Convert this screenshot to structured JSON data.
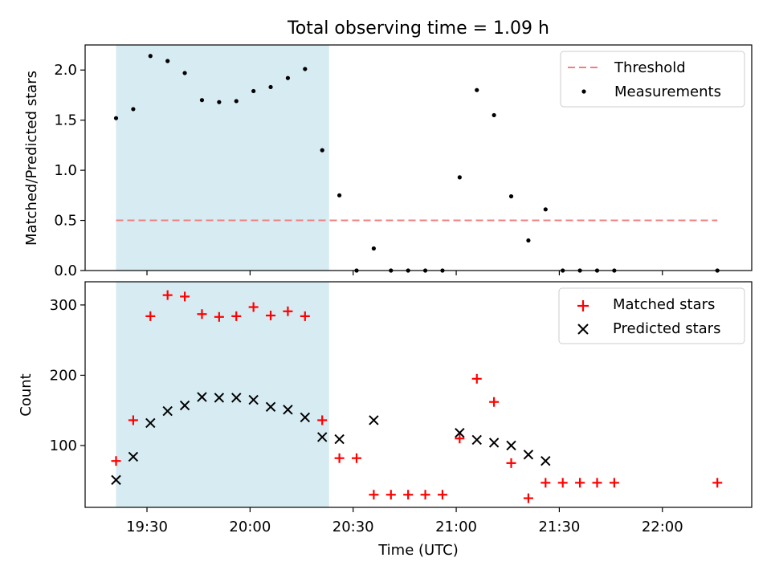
{
  "figure": {
    "title": "Total observing time = 1.09 h",
    "xlabel": "Time (UTC)"
  },
  "colors": {
    "shade": "#add8e6",
    "threshold": "#f08080",
    "matched": "#ff0000",
    "predicted": "#000000",
    "measurement": "#000000"
  },
  "chart_data": [
    {
      "type": "scatter",
      "ylabel": "Matched/Predicted stars",
      "ylim": [
        0,
        2.25
      ],
      "xlim": [
        "19:12",
        "22:26"
      ],
      "yticks": [
        "0.0",
        "0.5",
        "1.0",
        "1.5",
        "2.0"
      ],
      "yticks_values": [
        0,
        0.5,
        1.0,
        1.5,
        2.0
      ],
      "xticks": [
        "19:30",
        "20:00",
        "20:30",
        "21:00",
        "21:30",
        "22:00"
      ],
      "shaded_span": [
        "19:21",
        "20:23"
      ],
      "threshold": {
        "name": "Threshold",
        "value": 0.5,
        "x": [
          "19:21",
          "22:16"
        ]
      },
      "legend": {
        "placement": "top-right",
        "entries": [
          "Threshold",
          "Measurements"
        ]
      },
      "series": [
        {
          "name": "Measurements",
          "x": [
            "19:21",
            "19:26",
            "19:31",
            "19:36",
            "19:41",
            "19:46",
            "19:51",
            "19:56",
            "20:01",
            "20:06",
            "20:11",
            "20:16",
            "20:21",
            "20:26",
            "20:31",
            "20:36",
            "20:41",
            "20:46",
            "20:51",
            "20:56",
            "21:01",
            "21:06",
            "21:11",
            "21:16",
            "21:21",
            "21:26",
            "21:31",
            "21:36",
            "21:41",
            "21:46",
            "22:16"
          ],
          "values": [
            1.52,
            1.61,
            2.14,
            2.09,
            1.97,
            1.7,
            1.68,
            1.69,
            1.79,
            1.83,
            1.92,
            2.01,
            1.2,
            0.75,
            0.0,
            0.22,
            0.0,
            0.0,
            0.0,
            0.0,
            0.93,
            1.8,
            1.55,
            0.74,
            0.3,
            0.61,
            0.0,
            0.0,
            0.0,
            0.0,
            0.0
          ]
        }
      ]
    },
    {
      "type": "scatter",
      "ylabel": "Count",
      "ylim": [
        12,
        333
      ],
      "xlim": [
        "19:12",
        "22:26"
      ],
      "yticks": [
        "100",
        "200",
        "300"
      ],
      "yticks_values": [
        100,
        200,
        300
      ],
      "xticks": [
        "19:30",
        "20:00",
        "20:30",
        "21:00",
        "21:30",
        "22:00"
      ],
      "shaded_span": [
        "19:21",
        "20:23"
      ],
      "legend": {
        "placement": "top-right",
        "entries": [
          "Matched stars",
          "Predicted stars"
        ]
      },
      "series": [
        {
          "name": "Matched stars",
          "x": [
            "19:21",
            "19:26",
            "19:31",
            "19:36",
            "19:41",
            "19:46",
            "19:51",
            "19:56",
            "20:01",
            "20:06",
            "20:11",
            "20:16",
            "20:21",
            "20:26",
            "20:31",
            "20:36",
            "20:41",
            "20:46",
            "20:51",
            "20:56",
            "21:01",
            "21:06",
            "21:11",
            "21:16",
            "21:21",
            "21:26",
            "21:31",
            "21:36",
            "21:41",
            "21:46",
            "22:16"
          ],
          "values": [
            78,
            136,
            284,
            314,
            312,
            287,
            283,
            284,
            297,
            285,
            291,
            284,
            136,
            82,
            82,
            30,
            30,
            30,
            30,
            30,
            110,
            195,
            162,
            75,
            25,
            47,
            47,
            47,
            47,
            47,
            47
          ]
        },
        {
          "name": "Predicted stars",
          "x": [
            "19:21",
            "19:26",
            "19:31",
            "19:36",
            "19:41",
            "19:46",
            "19:51",
            "19:56",
            "20:01",
            "20:06",
            "20:11",
            "20:16",
            "20:21",
            "20:26",
            "20:36",
            "21:01",
            "21:06",
            "21:11",
            "21:16",
            "21:21",
            "21:26"
          ],
          "values": [
            51,
            84,
            132,
            149,
            157,
            169,
            168,
            168,
            165,
            155,
            151,
            140,
            112,
            109,
            136,
            118,
            108,
            104,
            100,
            87,
            78
          ]
        }
      ]
    }
  ]
}
